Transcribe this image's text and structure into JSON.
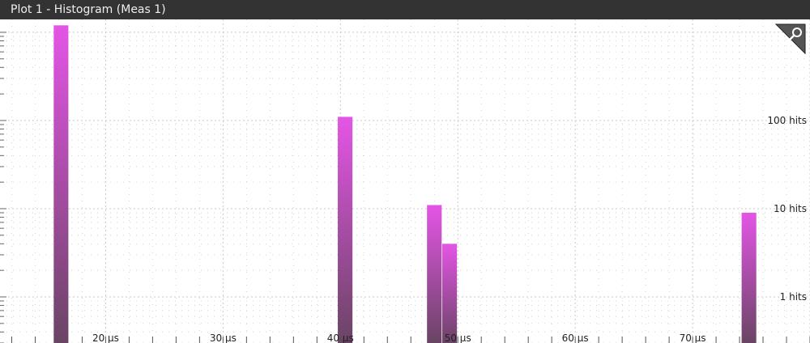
{
  "window": {
    "title": "Plot 1 - Histogram (Meas 1)"
  },
  "toolbar": {
    "zoom_icon": "magnifier-icon"
  },
  "colors": {
    "titlebar": "#333333",
    "bar_top": "#e455e6",
    "bar_bottom": "#6a4464",
    "grid": "#c8c8c8"
  },
  "chart_data": {
    "type": "bar",
    "x_unit": "µs",
    "y_unit": "hits",
    "y_scale": "log",
    "xlim": [
      11,
      80
    ],
    "ylim": [
      0.3,
      1400
    ],
    "x_ticks": [
      20,
      30,
      40,
      50,
      60,
      70
    ],
    "x_tick_labels": [
      "20 µs",
      "30 µs",
      "40 µs",
      "50 µs",
      "60 µs",
      "70 µs"
    ],
    "y_ticks": [
      100,
      10,
      1
    ],
    "y_tick_labels": [
      "100 hits",
      "10 hits",
      "1 hits"
    ],
    "bin_width": 1.25,
    "bins": [
      {
        "x": 16.2,
        "hits": 1200
      },
      {
        "x": 40.4,
        "hits": 110
      },
      {
        "x": 48.0,
        "hits": 11
      },
      {
        "x": 49.3,
        "hits": 4
      },
      {
        "x": 74.8,
        "hits": 9
      }
    ],
    "grid": true,
    "legend": "none"
  }
}
